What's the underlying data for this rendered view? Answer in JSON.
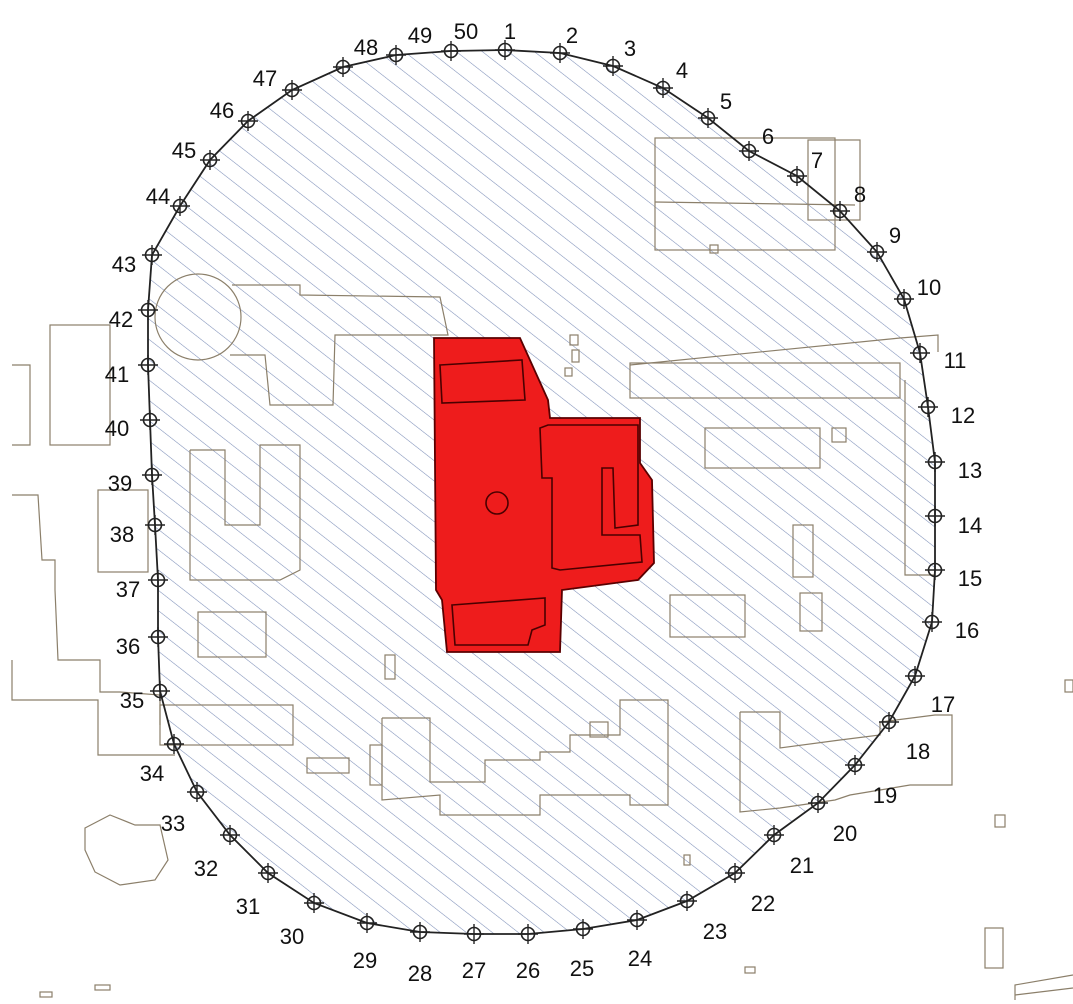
{
  "map": {
    "boundary_points": [
      "1",
      "2",
      "3",
      "4",
      "5",
      "6",
      "7",
      "8",
      "9",
      "10",
      "11",
      "12",
      "13",
      "14",
      "15",
      "16",
      "17",
      "18",
      "19",
      "20",
      "21",
      "22",
      "23",
      "24",
      "25",
      "26",
      "27",
      "28",
      "29",
      "30",
      "31",
      "32",
      "33",
      "34",
      "35",
      "36",
      "37",
      "38",
      "39",
      "40",
      "41",
      "42",
      "43",
      "44",
      "45",
      "46",
      "47",
      "48",
      "49",
      "50"
    ],
    "colors": {
      "hatch": "#7d8fb8",
      "target_fill": "#ee1c1c",
      "building_outline": "#8b7f6a",
      "boundary_line": "#222222"
    }
  }
}
